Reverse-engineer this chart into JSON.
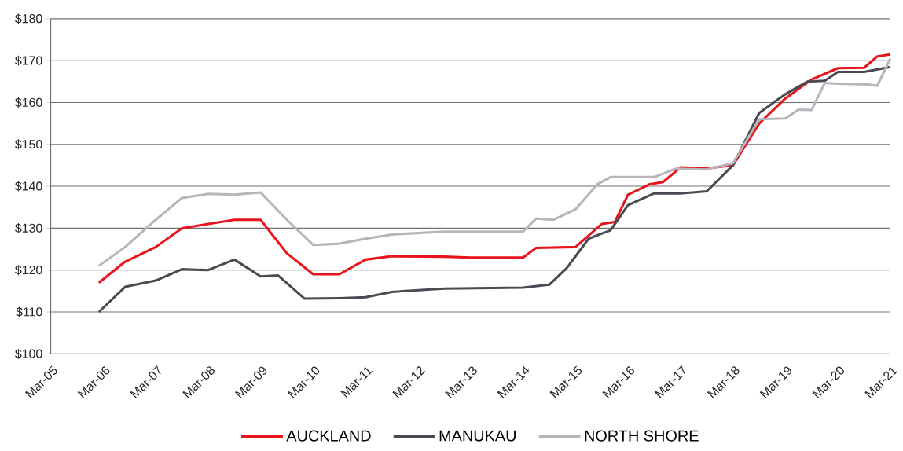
{
  "chart_data": {
    "type": "line",
    "xlim": [
      "2005-03",
      "2021-03"
    ],
    "xticks": [
      {
        "value": "2005-03",
        "label": "Mar-05"
      },
      {
        "value": "2006-03",
        "label": "Mar-06"
      },
      {
        "value": "2007-03",
        "label": "Mar-07"
      },
      {
        "value": "2008-03",
        "label": "Mar-08"
      },
      {
        "value": "2009-03",
        "label": "Mar-09"
      },
      {
        "value": "2010-03",
        "label": "Mar-10"
      },
      {
        "value": "2011-03",
        "label": "Mar-11"
      },
      {
        "value": "2012-03",
        "label": "Mar-12"
      },
      {
        "value": "2013-03",
        "label": "Mar-13"
      },
      {
        "value": "2014-03",
        "label": "Mar-14"
      },
      {
        "value": "2015-03",
        "label": "Mar-15"
      },
      {
        "value": "2016-03",
        "label": "Mar-16"
      },
      {
        "value": "2017-03",
        "label": "Mar-17"
      },
      {
        "value": "2018-03",
        "label": "Mar-18"
      },
      {
        "value": "2019-03",
        "label": "Mar-19"
      },
      {
        "value": "2020-03",
        "label": "Mar-20"
      },
      {
        "value": "2021-03",
        "label": "Mar-21"
      }
    ],
    "ylim": [
      100,
      180
    ],
    "yticks": [
      {
        "value": 100,
        "label": "$100"
      },
      {
        "value": 110,
        "label": "$110"
      },
      {
        "value": 120,
        "label": "$120"
      },
      {
        "value": 130,
        "label": "$130"
      },
      {
        "value": 140,
        "label": "$140"
      },
      {
        "value": 150,
        "label": "$150"
      },
      {
        "value": 160,
        "label": "$160"
      },
      {
        "value": 170,
        "label": "$170"
      },
      {
        "value": 180,
        "label": "$180"
      }
    ],
    "grid": "y",
    "legend": "bottom",
    "marker": "none",
    "line_style": "solid",
    "series": [
      {
        "name": "AUCKLAND",
        "color": "#e8141b",
        "x": [
          "2006-02",
          "2006-08",
          "2007-03",
          "2007-09",
          "2008-03",
          "2008-09",
          "2009-03",
          "2009-09",
          "2010-03",
          "2010-09",
          "2011-03",
          "2011-09",
          "2012-09",
          "2013-03",
          "2014-03",
          "2014-06",
          "2015-03",
          "2015-09",
          "2015-12",
          "2016-03",
          "2016-08",
          "2016-11",
          "2017-03",
          "2017-09",
          "2018-03",
          "2018-09",
          "2019-03",
          "2019-09",
          "2020-03",
          "2020-09",
          "2020-12",
          "2021-03"
        ],
        "values": [
          117,
          122,
          125.5,
          130,
          131,
          132,
          132,
          124,
          119,
          119,
          122.5,
          123.3,
          123.2,
          123,
          123,
          125.3,
          125.5,
          131,
          131.5,
          138,
          140.5,
          141,
          144.5,
          144.3,
          145,
          155,
          161,
          165.5,
          168.2,
          168.3,
          171,
          171.5
        ]
      },
      {
        "name": "MANUKAU",
        "color": "#4a4a52",
        "x": [
          "2006-02",
          "2006-08",
          "2007-03",
          "2007-09",
          "2008-03",
          "2008-09",
          "2009-03",
          "2009-07",
          "2010-01",
          "2010-09",
          "2011-03",
          "2011-09",
          "2012-09",
          "2014-03",
          "2014-09",
          "2015-01",
          "2015-06",
          "2015-11",
          "2016-03",
          "2016-09",
          "2017-03",
          "2017-09",
          "2018-03",
          "2018-09",
          "2019-03",
          "2019-08",
          "2019-12",
          "2020-03",
          "2020-09",
          "2021-03"
        ],
        "values": [
          110,
          116,
          117.5,
          120.2,
          120,
          122.5,
          118.5,
          118.7,
          113.2,
          113.3,
          113.5,
          114.8,
          115.6,
          115.8,
          116.5,
          120.5,
          127.5,
          129.5,
          135.5,
          138.3,
          138.3,
          138.8,
          145,
          157.5,
          162,
          165,
          165.2,
          167.3,
          167.3,
          168.5
        ]
      },
      {
        "name": "NORTH SHORE",
        "color": "#b8b4bc",
        "x": [
          "2006-02",
          "2006-08",
          "2007-03",
          "2007-09",
          "2008-03",
          "2008-09",
          "2009-03",
          "2009-09",
          "2010-03",
          "2010-09",
          "2011-03",
          "2011-09",
          "2012-09",
          "2014-03",
          "2014-06",
          "2014-10",
          "2015-03",
          "2015-08",
          "2015-11",
          "2016-09",
          "2017-02",
          "2017-09",
          "2018-03",
          "2018-09",
          "2019-03",
          "2019-06",
          "2019-09",
          "2019-12",
          "2020-03",
          "2020-10",
          "2020-12",
          "2021-03"
        ],
        "values": [
          121,
          125.5,
          132,
          137.2,
          138.2,
          138,
          138.5,
          132,
          126,
          126.3,
          127.5,
          128.5,
          129.2,
          129.2,
          132.3,
          132,
          134.5,
          140.5,
          142.2,
          142.2,
          144.2,
          144,
          145.5,
          156,
          156.2,
          158.3,
          158.2,
          164.7,
          164.5,
          164.3,
          164,
          170.5
        ]
      }
    ]
  }
}
